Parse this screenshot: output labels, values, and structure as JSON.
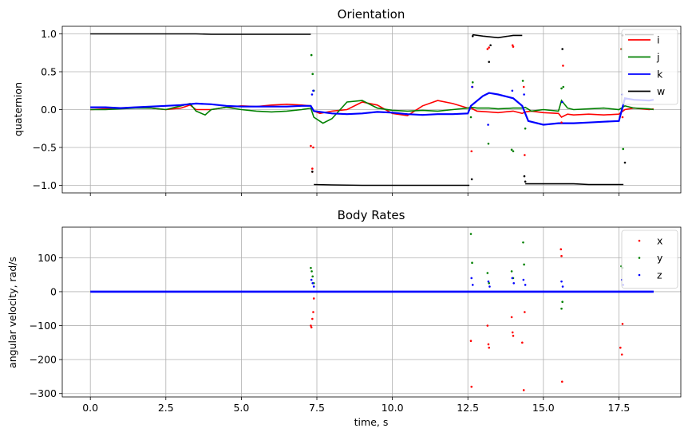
{
  "chart_data": [
    {
      "type": "line",
      "title": "Orientation",
      "xlabel": "",
      "ylabel": "quaternion",
      "xlim": [
        -0.93,
        19.55
      ],
      "ylim": [
        -1.1,
        1.1
      ],
      "xticks": [
        0.0,
        2.5,
        5.0,
        7.5,
        10.0,
        12.5,
        15.0,
        17.5
      ],
      "yticks": [
        -1.0,
        -0.5,
        0.0,
        0.5,
        1.0
      ],
      "ytick_labels": [
        "−1.0",
        "−0.5",
        "0.0",
        "0.5",
        "1.0"
      ],
      "show_xtick_labels": false,
      "grid": true,
      "legend": "top-right",
      "series": [
        {
          "name": "i",
          "color": "#ff0000",
          "x": [
            0,
            0.5,
            1,
            1.5,
            2,
            2.5,
            3,
            3.3,
            3.5,
            4,
            4.5,
            5,
            5.5,
            6,
            6.5,
            7,
            7.3,
            7.4,
            7.6,
            8,
            8.5,
            9,
            9.5,
            10,
            10.5,
            11,
            11.5,
            12,
            12.5,
            12.6,
            12.8,
            13.2,
            13.5,
            14,
            14.3,
            14.4,
            14.6,
            15,
            15.5,
            15.6,
            15.8,
            16,
            16.5,
            17,
            17.5,
            17.7,
            18,
            18.5,
            18.65
          ],
          "y": [
            0.0,
            0.01,
            0.02,
            0.03,
            0.02,
            0.0,
            0.02,
            0.06,
            0.0,
            0.0,
            0.03,
            0.05,
            0.04,
            0.06,
            0.07,
            0.06,
            0.05,
            -0.02,
            -0.05,
            -0.02,
            0.0,
            0.1,
            0.06,
            -0.05,
            -0.08,
            0.05,
            0.12,
            0.08,
            0.02,
            0.02,
            -0.02,
            -0.03,
            -0.04,
            -0.02,
            -0.05,
            -0.03,
            -0.02,
            -0.04,
            -0.05,
            -0.1,
            -0.06,
            -0.07,
            -0.06,
            -0.07,
            -0.06,
            0.0,
            0.02,
            0.0,
            0.01
          ]
        },
        {
          "name": "j",
          "color": "#008000",
          "x": [
            0,
            0.5,
            1,
            1.5,
            2,
            2.5,
            3,
            3.3,
            3.5,
            3.8,
            4,
            4.5,
            5,
            5.5,
            6,
            6.5,
            7,
            7.3,
            7.4,
            7.7,
            8,
            8.5,
            9,
            9.5,
            10,
            10.5,
            11,
            11.5,
            12,
            12.5,
            12.6,
            12.8,
            13.2,
            13.5,
            14,
            14.3,
            14.4,
            14.6,
            15,
            15.5,
            15.6,
            15.8,
            16,
            16.5,
            17,
            17.5,
            17.7,
            18,
            18.5,
            18.65
          ],
          "y": [
            0.0,
            0.0,
            0.01,
            0.02,
            0.02,
            0.0,
            0.05,
            0.08,
            -0.02,
            -0.07,
            0.0,
            0.03,
            0.0,
            -0.02,
            -0.03,
            -0.02,
            0.0,
            0.02,
            -0.1,
            -0.18,
            -0.12,
            0.1,
            0.12,
            0.02,
            -0.01,
            -0.02,
            -0.01,
            -0.02,
            0.0,
            0.02,
            0.03,
            0.02,
            0.02,
            0.01,
            0.02,
            0.02,
            0.03,
            -0.02,
            0.0,
            -0.02,
            0.12,
            0.02,
            0.0,
            0.01,
            0.02,
            0.0,
            0.05,
            0.02,
            0.01,
            0.0
          ]
        },
        {
          "name": "k",
          "color": "#0000ff",
          "x": [
            0,
            0.5,
            1,
            1.5,
            2,
            2.5,
            3,
            3.5,
            4,
            4.5,
            5,
            5.5,
            6,
            6.5,
            7,
            7.3,
            7.4,
            8,
            8.5,
            9,
            9.5,
            10,
            10.5,
            11,
            11.5,
            12,
            12.5,
            12.6,
            13,
            13.2,
            13.5,
            14,
            14.3,
            14.5,
            15,
            15.5,
            16,
            16.5,
            17,
            17.5,
            17.7,
            18,
            18.5,
            18.65
          ],
          "y": [
            0.03,
            0.03,
            0.02,
            0.03,
            0.04,
            0.05,
            0.06,
            0.08,
            0.07,
            0.05,
            0.04,
            0.04,
            0.04,
            0.04,
            0.05,
            0.05,
            -0.02,
            -0.05,
            -0.06,
            -0.05,
            -0.03,
            -0.04,
            -0.06,
            -0.07,
            -0.06,
            -0.06,
            -0.05,
            0.05,
            0.18,
            0.22,
            0.2,
            0.15,
            0.05,
            -0.15,
            -0.2,
            -0.18,
            -0.18,
            -0.17,
            -0.16,
            -0.15,
            0.15,
            0.13,
            0.12,
            0.13
          ]
        },
        {
          "name": "w",
          "color": "#000000",
          "x": [
            0,
            0.5,
            1,
            1.5,
            2,
            2.5,
            3,
            3.5,
            4,
            4.5,
            5,
            5.5,
            6,
            6.5,
            7,
            7.3
          ],
          "y": [
            1.0,
            1.0,
            1.0,
            1.0,
            1.0,
            1.0,
            1.0,
            1.0,
            0.995,
            0.995,
            0.995,
            0.995,
            0.995,
            0.995,
            0.995,
            0.995
          ]
        },
        {
          "name": "",
          "color": "#000000",
          "x": [
            7.4,
            8,
            9,
            10,
            11,
            12,
            12.55
          ],
          "y": [
            -0.99,
            -0.995,
            -1.0,
            -1.0,
            -1.0,
            -1.0,
            -1.0
          ]
        },
        {
          "name": "",
          "color": "#000000",
          "x": [
            12.65,
            13,
            13.5,
            14,
            14.3
          ],
          "y": [
            0.99,
            0.97,
            0.95,
            0.98,
            0.98
          ]
        },
        {
          "name": "",
          "color": "#000000",
          "x": [
            14.4,
            15,
            15.5,
            16,
            16.5,
            17,
            17.5,
            17.65
          ],
          "y": [
            -0.98,
            -0.98,
            -0.98,
            -0.98,
            -0.99,
            -0.99,
            -0.99,
            -0.99
          ]
        },
        {
          "name": "",
          "color": "#000000",
          "x": [
            17.7,
            18,
            18.5,
            18.65
          ],
          "y": [
            0.99,
            0.99,
            0.99,
            0.99
          ]
        }
      ],
      "scatter": [
        {
          "color": "#ff0000",
          "x": [
            7.3,
            7.35,
            7.35,
            7.38,
            12.62,
            12.65,
            13.15,
            13.2,
            13.98,
            14,
            14.35,
            14.38,
            15.6,
            15.65,
            17.58,
            17.62
          ],
          "y": [
            -0.48,
            -0.78,
            -0.82,
            -0.5,
            -0.55,
            0.3,
            0.8,
            0.82,
            0.85,
            0.83,
            0.3,
            -0.6,
            -0.17,
            0.58,
            0.8,
            -0.1
          ]
        },
        {
          "color": "#008000",
          "x": [
            7.32,
            7.36,
            7.4,
            12.6,
            12.66,
            13.18,
            13.95,
            14.0,
            14.32,
            14.4,
            15.6,
            15.66,
            17.6,
            17.64
          ],
          "y": [
            0.72,
            0.47,
            0.25,
            -0.1,
            0.36,
            -0.45,
            -0.53,
            -0.55,
            0.38,
            -0.25,
            0.28,
            0.3,
            0.8,
            -0.52
          ]
        },
        {
          "color": "#0000ff",
          "x": [
            7.34,
            7.38,
            12.64,
            13.17,
            13.97,
            14.36,
            15.62,
            17.61
          ],
          "y": [
            0.2,
            0.25,
            0.3,
            -0.2,
            0.25,
            0.2,
            0.1,
            0.2
          ]
        },
        {
          "color": "#000000",
          "x": [
            7.35,
            12.63,
            12.66,
            13.2,
            13.25,
            14.37,
            14.4,
            15.63,
            17.62,
            17.7
          ],
          "y": [
            -0.82,
            -0.92,
            0.97,
            0.63,
            0.85,
            -0.88,
            -0.95,
            0.8,
            0.98,
            -0.7
          ]
        }
      ]
    },
    {
      "type": "scatter",
      "title": "Body Rates",
      "xlabel": "time, s",
      "ylabel": "angular velocity, rad/s",
      "xlim": [
        -0.93,
        19.55
      ],
      "ylim": [
        -310,
        190
      ],
      "xticks": [
        0.0,
        2.5,
        5.0,
        7.5,
        10.0,
        12.5,
        15.0,
        17.5
      ],
      "xtick_labels": [
        "0.0",
        "2.5",
        "5.0",
        "7.5",
        "10.0",
        "12.5",
        "15.0",
        "17.5"
      ],
      "yticks": [
        -300,
        -200,
        -100,
        0,
        100
      ],
      "ytick_labels": [
        "−300",
        "−200",
        "−100",
        "0",
        "100"
      ],
      "grid": true,
      "legend": "top-right",
      "baseline": {
        "x_start": 0.0,
        "x_end": 18.65,
        "y": 0
      },
      "series": [
        {
          "name": "x",
          "color": "#ff0000",
          "x": [
            7.3,
            7.32,
            7.35,
            7.38,
            7.4,
            12.6,
            12.62,
            13.15,
            13.18,
            13.2,
            13.95,
            13.98,
            14.0,
            14.3,
            14.35,
            14.38,
            15.58,
            15.6,
            15.62,
            17.55,
            17.6,
            17.62
          ],
          "y": [
            -100,
            -105,
            -80,
            -60,
            -20,
            -145,
            -280,
            -100,
            -155,
            -165,
            -75,
            -120,
            -130,
            -150,
            -290,
            -60,
            125,
            105,
            -265,
            -165,
            -185,
            -95
          ]
        },
        {
          "name": "y",
          "color": "#008000",
          "x": [
            7.3,
            7.33,
            7.36,
            7.4,
            12.6,
            12.64,
            13.15,
            13.2,
            13.95,
            14.0,
            14.33,
            14.36,
            15.6,
            15.63,
            17.58,
            17.62
          ],
          "y": [
            70,
            60,
            45,
            25,
            170,
            85,
            55,
            25,
            60,
            40,
            145,
            80,
            -50,
            -30,
            75,
            70
          ]
        },
        {
          "name": "z",
          "color": "#0000ff",
          "x": [
            7.32,
            7.36,
            7.4,
            12.62,
            12.66,
            13.18,
            13.22,
            13.97,
            14.02,
            14.34,
            14.4,
            15.6,
            15.64,
            17.6,
            17.64
          ],
          "y": [
            35,
            25,
            15,
            40,
            20,
            30,
            15,
            40,
            25,
            35,
            20,
            30,
            15,
            35,
            20
          ]
        }
      ]
    }
  ]
}
